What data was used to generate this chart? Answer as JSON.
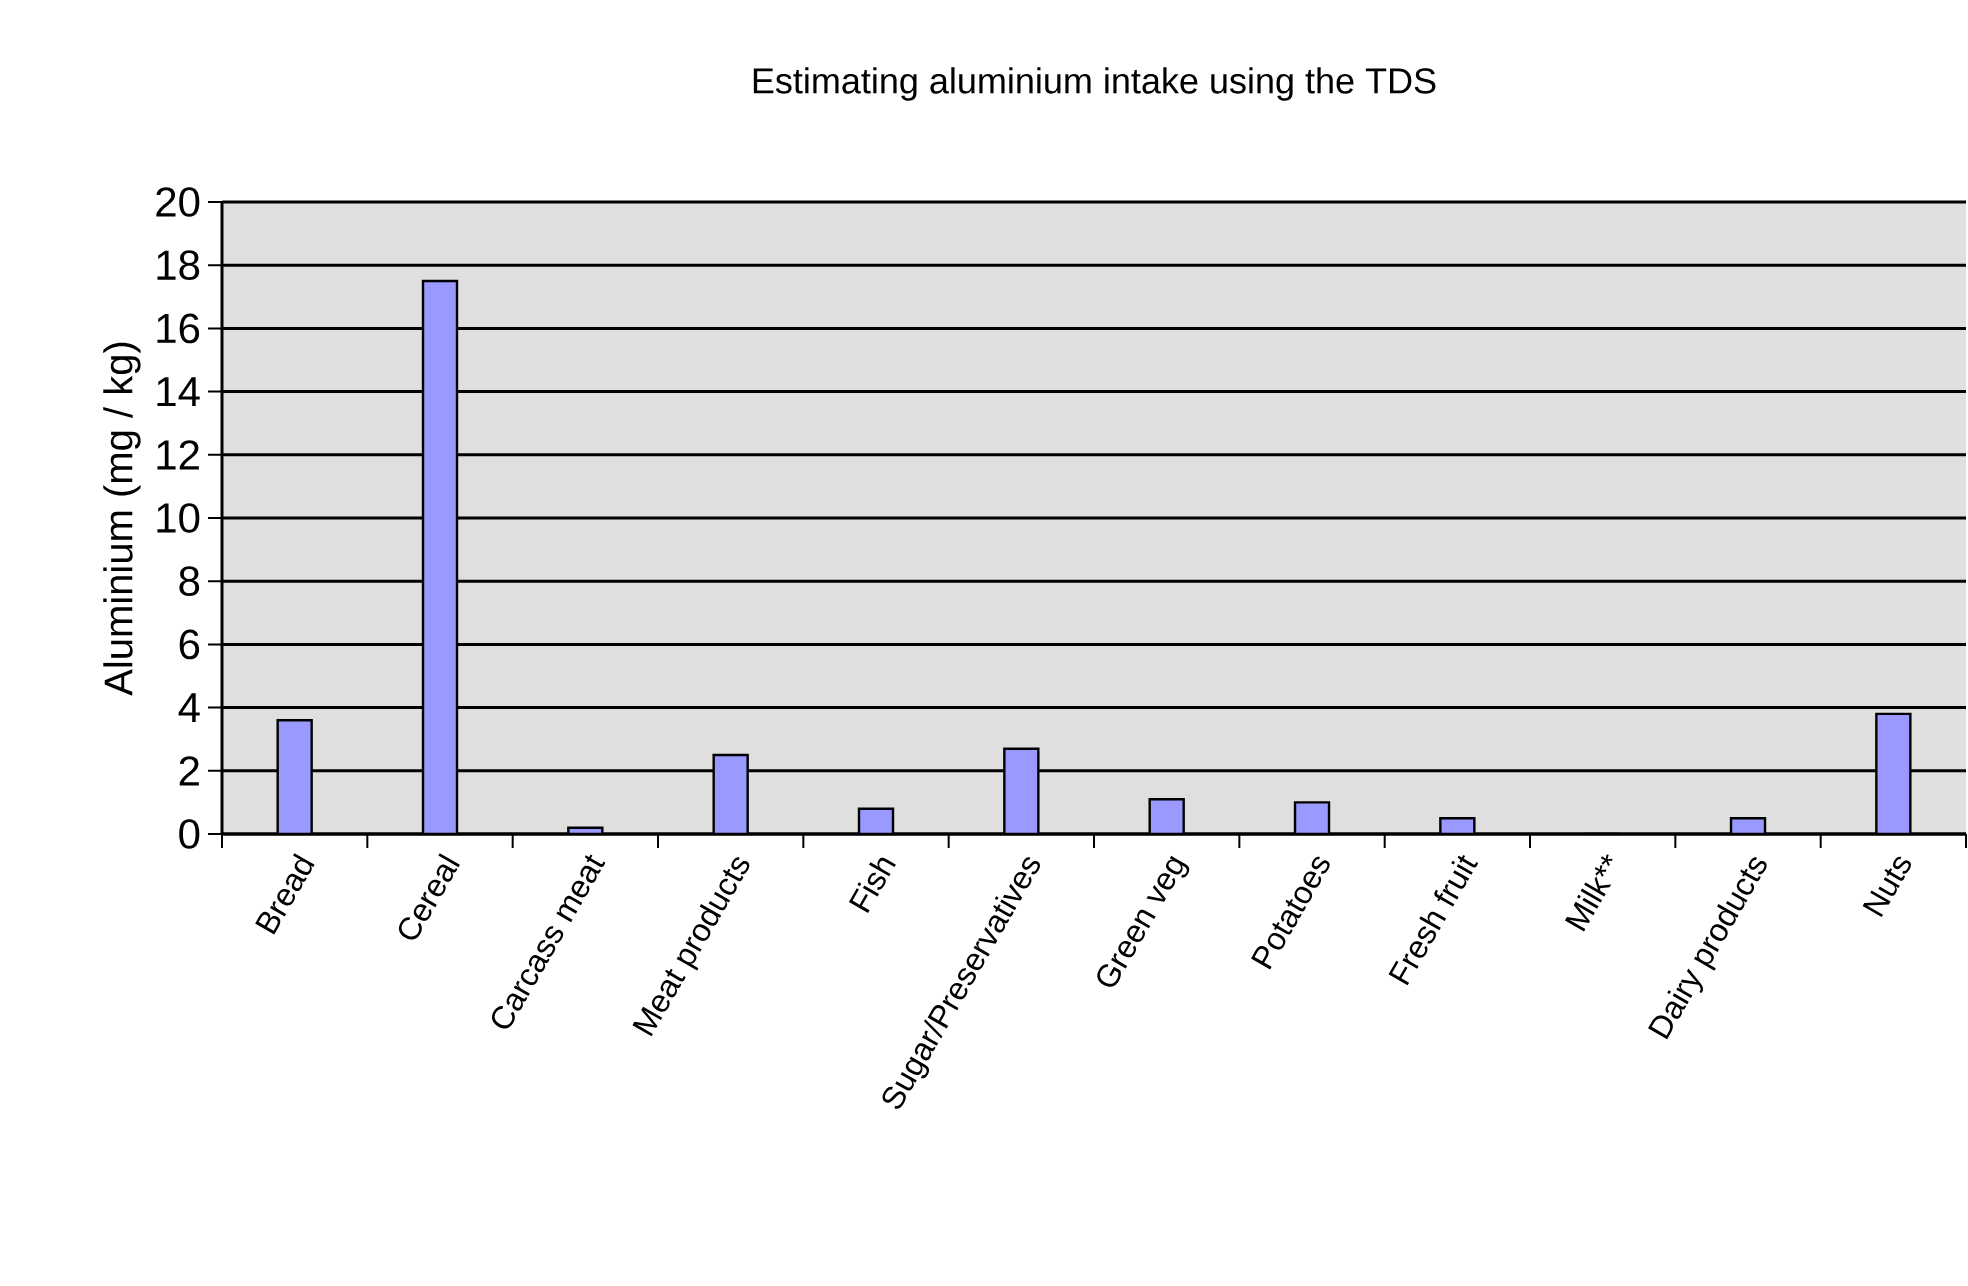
{
  "chart_data": {
    "type": "bar",
    "title": "Estimating aluminium intake using the TDS",
    "ylabel": "Aluminium (mg / kg)",
    "categories": [
      "Bread",
      "Cereal",
      "Carcass meat",
      "Meat products",
      "Fish",
      "Sugar/Preservatives",
      "Green veg",
      "Potatoes",
      "Fresh fruit",
      "Milk**",
      "Dairy products",
      "Nuts"
    ],
    "values": [
      3.6,
      17.5,
      0.2,
      2.5,
      0.8,
      2.7,
      1.1,
      1.0,
      0.5,
      0,
      0.5,
      3.8
    ],
    "color": "#9999ff",
    "ylim": [
      0,
      20
    ],
    "yticks": [
      0,
      2,
      4,
      6,
      8,
      10,
      12,
      14,
      16,
      18,
      20
    ],
    "grid": "y"
  }
}
